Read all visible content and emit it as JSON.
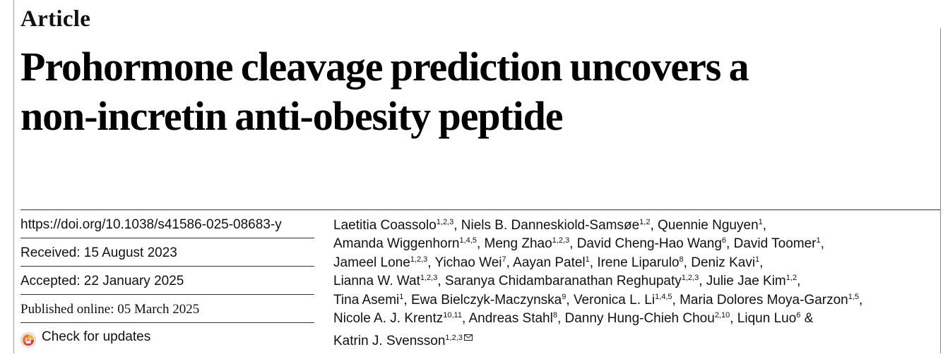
{
  "header": {
    "article_type": "Article",
    "title_lines": [
      "Prohormone cleavage prediction uncovers a",
      "non-incretin anti-obesity peptide"
    ]
  },
  "meta": {
    "doi": "https://doi.org/10.1038/s41586-025-08683-y",
    "received": "Received: 15 August 2023",
    "accepted": "Accepted: 22 January 2025",
    "published": "Published online: 05 March 2025",
    "check_updates": "Check for updates",
    "check_updates_icon": "check-for-updates-icon"
  },
  "authors": [
    {
      "name": "Laetitia Coassolo",
      "aff": "1,2,3",
      "sep": ", "
    },
    {
      "name": "Niels B. Danneskiold-Samsøe",
      "aff": "1,2",
      "sep": ", "
    },
    {
      "name": "Quennie Nguyen",
      "aff": "1",
      "sep": ","
    },
    {
      "name": "Amanda Wiggenhorn",
      "aff": "1,4,5",
      "sep": ", "
    },
    {
      "name": "Meng Zhao",
      "aff": "1,2,3",
      "sep": ", "
    },
    {
      "name": "David Cheng-Hao Wang",
      "aff": "6",
      "sep": ", "
    },
    {
      "name": "David Toomer",
      "aff": "1",
      "sep": ","
    },
    {
      "name": "Jameel Lone",
      "aff": "1,2,3",
      "sep": ", "
    },
    {
      "name": "Yichao Wei",
      "aff": "7",
      "sep": ", "
    },
    {
      "name": "Aayan Patel",
      "aff": "1",
      "sep": ", "
    },
    {
      "name": "Irene Liparulo",
      "aff": "8",
      "sep": ", "
    },
    {
      "name": "Deniz Kavi",
      "aff": "1",
      "sep": ","
    },
    {
      "name": "Lianna W. Wat",
      "aff": "1,2,3",
      "sep": ", "
    },
    {
      "name": "Saranya Chidambaranathan Reghupaty",
      "aff": "1,2,3",
      "sep": ", "
    },
    {
      "name": "Julie Jae Kim",
      "aff": "1,2",
      "sep": ","
    },
    {
      "name": "Tina Asemi",
      "aff": "1",
      "sep": ", "
    },
    {
      "name": "Ewa Bielczyk-Maczynska",
      "aff": "9",
      "sep": ", "
    },
    {
      "name": "Veronica L. Li",
      "aff": "1,4,5",
      "sep": ", "
    },
    {
      "name": "Maria Dolores Moya-Garzon",
      "aff": "1,5",
      "sep": ","
    },
    {
      "name": "Nicole A. J. Krentz",
      "aff": "10,11",
      "sep": ", "
    },
    {
      "name": "Andreas Stahl",
      "aff": "8",
      "sep": ", "
    },
    {
      "name": "Danny Hung-Chieh Chou",
      "aff": "2,10",
      "sep": ", "
    },
    {
      "name": "Liqun Luo",
      "aff": "6",
      "sep": " &"
    },
    {
      "name": "Katrin J. Svensson",
      "aff": "1,2,3",
      "sep": ""
    }
  ],
  "author_lines": [
    [
      0,
      1,
      2
    ],
    [
      3,
      4,
      5,
      6
    ],
    [
      7,
      8,
      9,
      10,
      11
    ],
    [
      12,
      13,
      14
    ],
    [
      15,
      16,
      17,
      18
    ],
    [
      19,
      20,
      21,
      22
    ],
    [
      23
    ]
  ],
  "corresponding_icon": "envelope-icon",
  "colors": {
    "text": "#111111",
    "rule": "#333333",
    "cfu_red": "#e63a2e",
    "cfu_yellow": "#f2b233"
  }
}
